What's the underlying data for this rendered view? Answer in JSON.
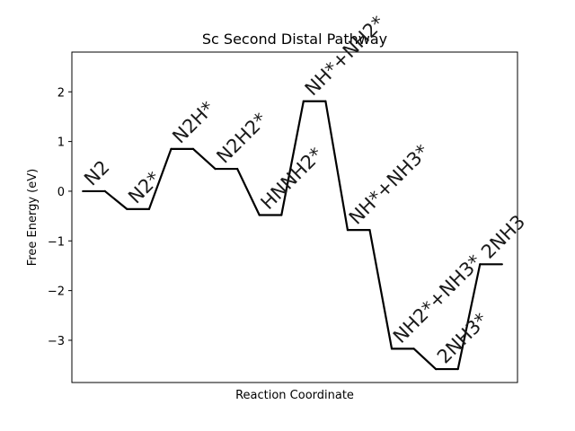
{
  "chart_data": {
    "type": "line",
    "title": "Sc Second Distal Pathway",
    "xlabel": "Reaction Coordinate",
    "ylabel": "Free Energy (eV)",
    "ylim": [
      -3.85,
      2.8
    ],
    "xlim": [
      -0.5,
      19.7
    ],
    "yticks": [
      2,
      1,
      0,
      -1,
      -2,
      -3
    ],
    "ytick_labels": [
      "2",
      "1",
      "0",
      "−1",
      "−2",
      "−3"
    ],
    "grid": false,
    "line_color": "#000000",
    "steps": [
      {
        "label": "N2",
        "value": 0.0
      },
      {
        "label": "N2*",
        "value": -0.36
      },
      {
        "label": "N2H*",
        "value": 0.85
      },
      {
        "label": "N2H2*",
        "value": 0.45
      },
      {
        "label": "HNNH2*",
        "value": -0.48
      },
      {
        "label": "NH*+NH2*",
        "value": 1.81
      },
      {
        "label": "NH*+NH3*",
        "value": -0.78
      },
      {
        "label": "NH2*+NH3*",
        "value": -3.17
      },
      {
        "label": "2NH3*",
        "value": -3.58
      },
      {
        "label": "2NH3",
        "value": -1.47
      }
    ]
  }
}
